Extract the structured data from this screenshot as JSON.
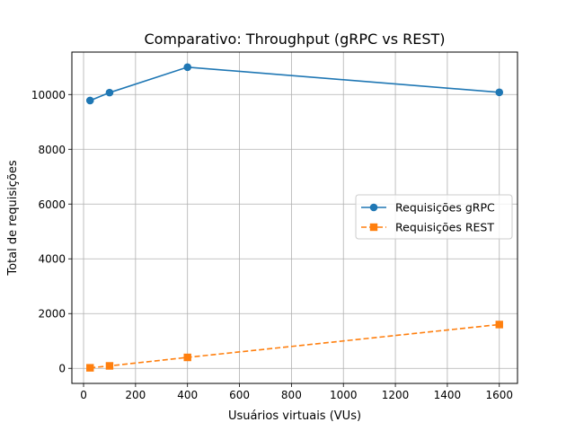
{
  "chart_data": {
    "type": "line",
    "title": "Comparativo: Throughput (gRPC vs REST)",
    "xlabel": "Usuários virtuais (VUs)",
    "ylabel": "Total de requisições",
    "xlim": [
      -45,
      1670
    ],
    "ylim": [
      -550,
      11550
    ],
    "x_ticks": [
      0,
      200,
      400,
      600,
      800,
      1000,
      1200,
      1400,
      1600
    ],
    "y_ticks": [
      0,
      2000,
      4000,
      6000,
      8000,
      10000
    ],
    "grid": true,
    "legend_position": "center-right",
    "series": [
      {
        "name": "Requisições gRPC",
        "color": "#1f77b4",
        "line_style": "solid",
        "marker": "circle",
        "x": [
          25,
          100,
          400,
          1600
        ],
        "values": [
          9780,
          10070,
          11000,
          10080
        ]
      },
      {
        "name": "Requisições REST",
        "color": "#ff7f0e",
        "line_style": "dashed",
        "marker": "square",
        "x": [
          25,
          100,
          400,
          1600
        ],
        "values": [
          20,
          90,
          400,
          1600
        ]
      }
    ]
  }
}
